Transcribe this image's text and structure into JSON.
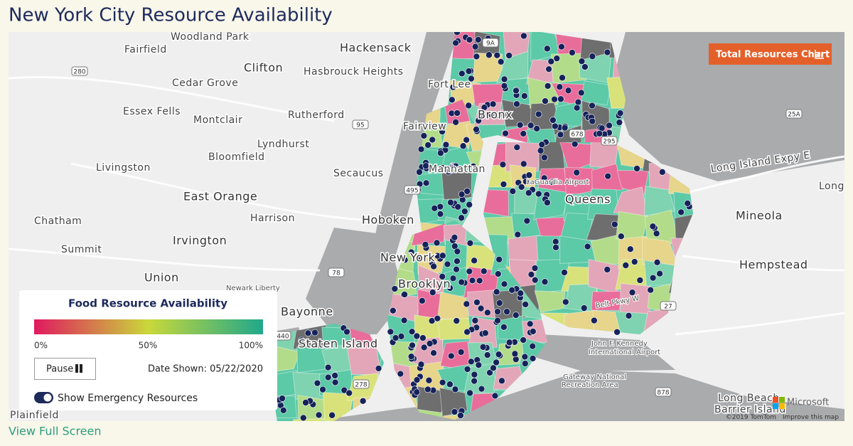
{
  "header": {
    "title": "New York City Resource Availability"
  },
  "map": {
    "labels": [
      "Woodland Park",
      "Hackensack",
      "Fairfield",
      "Clifton",
      "Hasbrouck Heights",
      "Cedar Grove",
      "Fort Lee",
      "Essex Fells",
      "Rutherford",
      "Montclair",
      "Fairview",
      "Lyndhurst",
      "Bloomfield",
      "Livingston",
      "Secaucus",
      "Manhattan",
      "East Orange",
      "Harrison",
      "Hoboken",
      "Chatham",
      "Irvington",
      "New York",
      "Summit",
      "Union",
      "Newark Liberty",
      "Bayonne",
      "Brooklyn",
      "Staten Island",
      "Queens",
      "Bronx",
      "LaGuardia Airport",
      "Mineola",
      "Hempstead",
      "Long Island Expy E",
      "Long",
      "John F. Kennedy",
      "International Airport",
      "Gateway National",
      "Recreation Area",
      "Long Beach",
      "Barrier Island",
      "Plainfield",
      "Belt Pkwy W"
    ],
    "shields": [
      "280",
      "95",
      "9A",
      "678",
      "295",
      "25A",
      "495",
      "78",
      "440",
      "278",
      "27",
      "878"
    ],
    "attribution": "©2019 TomTom",
    "improve": "Improve this map",
    "provider": "Microsoft"
  },
  "button": {
    "label": "Total Resources Chart"
  },
  "legend": {
    "title": "Food Resource Availability",
    "ticks": [
      "0%",
      "50%",
      "100%"
    ],
    "date_label": "Date Shown: 05/22/2020",
    "pause": "Pause",
    "toggle": "Show Emergency Resources"
  },
  "footer": {
    "link": "View Full Screen"
  }
}
